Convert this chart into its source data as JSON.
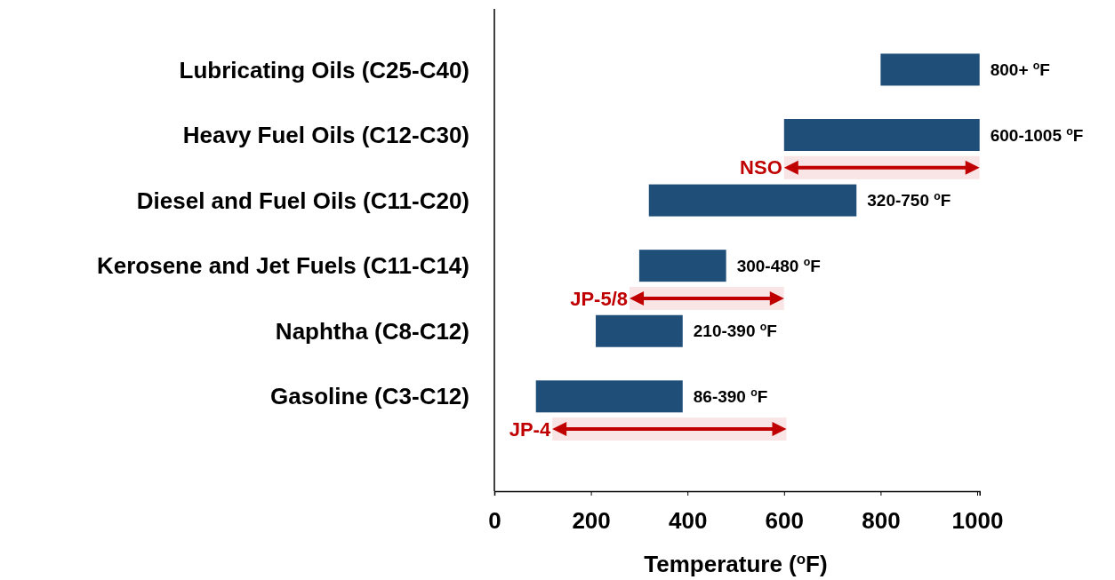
{
  "chart_data": {
    "type": "bar",
    "orientation": "horizontal",
    "xlabel": "Temperature ($^{o}$F)",
    "categories": [
      "Lubricating Oils (C25-C40)",
      "Heavy Fuel Oils (C12-C30)",
      "Diesel and Fuel Oils (C11-C20)",
      "Kerosene and Jet Fuels (C11-C14)",
      "Naphtha (C8-C12)",
      "Gasoline (C3-C12)"
    ],
    "base": [
      800,
      600,
      320,
      300,
      210,
      86
    ],
    "values": [
      205,
      405,
      430,
      180,
      180,
      304
    ],
    "color": "#1f4e79",
    "value_labels": [
      "800+ $^{o}$F",
      "600-1005 $^{o}$F",
      "320-750 $^{o}$F",
      "300-480 $^{o}$F",
      "210-390 $^{o}$F",
      "86-390 $^{o}$F"
    ],
    "xlim": [
      0,
      1005
    ],
    "xticks": [
      0,
      200,
      400,
      600,
      800,
      1000
    ],
    "bands": [
      {
        "axis": "x",
        "from": 600,
        "to": 1005,
        "label": "NSO",
        "color": "#c00000"
      },
      {
        "axis": "x",
        "from": 280,
        "to": 600,
        "label": "JP-5/8",
        "color": "#c00000"
      },
      {
        "axis": "x",
        "from": 120,
        "to": 605,
        "label": "JP-4",
        "color": "#c00000"
      }
    ]
  }
}
